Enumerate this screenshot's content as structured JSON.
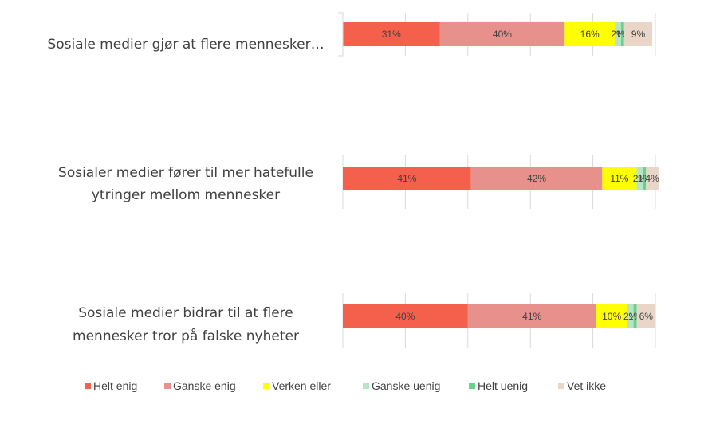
{
  "chart_data": {
    "type": "bar",
    "orientation": "horizontal",
    "stacked": true,
    "xlim": [
      0,
      100
    ],
    "grid": true,
    "legend_position": "bottom",
    "categories": [
      "Sosiale medier gjør at flere mennesker...",
      "Sosialer medier fører til mer hatefulle ytringer mellom mennesker",
      "Sosiale medier bidrar til at flere mennesker tror på falske nyheter"
    ],
    "category_lines": [
      [
        "Sosiale medier gjør at flere mennesker…"
      ],
      [
        "Sosialer medier fører til mer hatefulle",
        "ytringer mellom mennesker"
      ],
      [
        "Sosiale medier bidrar til at flere",
        "mennesker tror på falske nyheter"
      ]
    ],
    "series": [
      {
        "name": "Helt enig",
        "color": "#f4604c",
        "values": [
          31,
          41,
          40
        ],
        "labels": [
          "31%",
          "41%",
          "40%"
        ]
      },
      {
        "name": "Ganske enig",
        "color": "#e8908b",
        "values": [
          40,
          42,
          41
        ],
        "labels": [
          "40%",
          "42%",
          "41%"
        ]
      },
      {
        "name": "Verken eller",
        "color": "#ffff00",
        "values": [
          16,
          11,
          10
        ],
        "labels": [
          "16%",
          "11%",
          "10%"
        ]
      },
      {
        "name": "Ganske uenig",
        "color": "#b7e4c7",
        "values": [
          2,
          2,
          2
        ],
        "labels": [
          "2%",
          "2%",
          "2%"
        ]
      },
      {
        "name": "Helt uenig",
        "color": "#66d38a",
        "values": [
          1,
          1,
          1
        ],
        "labels": [
          "1%",
          "1%",
          "1%"
        ]
      },
      {
        "name": "Vet ikke",
        "color": "#e9d6c8",
        "values": [
          9,
          4,
          6
        ],
        "labels": [
          "9%",
          "4%",
          "6%"
        ]
      }
    ]
  }
}
